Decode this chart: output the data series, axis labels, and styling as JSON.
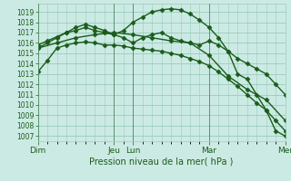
{
  "title": "Pression niveau de la mer( hPa )",
  "bg_color": "#cceae4",
  "grid_color": "#99ccbb",
  "line_color": "#1a5c1a",
  "ylim": [
    1006.5,
    1019.8
  ],
  "yticks": [
    1007,
    1008,
    1009,
    1010,
    1011,
    1012,
    1013,
    1014,
    1015,
    1016,
    1017,
    1018,
    1019
  ],
  "xlim": [
    0,
    156
  ],
  "day_positions": [
    0,
    48,
    60,
    108,
    156
  ],
  "day_labels": [
    "Dim",
    "Jeu",
    "Lun",
    "Mar",
    "Mer"
  ],
  "line1_x": [
    0,
    6,
    12,
    18,
    24,
    30,
    36,
    42,
    48,
    54,
    60,
    66,
    72,
    78,
    84,
    90,
    96,
    102,
    108,
    114,
    120,
    126,
    132,
    138,
    144,
    150,
    156
  ],
  "line1_y": [
    1013.2,
    1014.3,
    1015.5,
    1015.8,
    1016.0,
    1016.1,
    1016.0,
    1015.8,
    1015.8,
    1015.7,
    1015.5,
    1015.4,
    1015.3,
    1015.2,
    1015.0,
    1014.8,
    1014.5,
    1014.2,
    1013.8,
    1013.2,
    1012.5,
    1011.8,
    1011.0,
    1010.2,
    1009.5,
    1008.5,
    1007.5
  ],
  "line2_x": [
    0,
    6,
    12,
    18,
    24,
    30,
    36,
    42,
    48,
    54,
    60,
    66,
    72,
    78,
    84,
    90,
    96,
    102,
    108,
    114,
    120,
    126,
    132,
    138,
    144,
    150,
    156
  ],
  "line2_y": [
    1015.8,
    1016.2,
    1016.6,
    1017.0,
    1017.2,
    1017.5,
    1017.2,
    1017.0,
    1016.8,
    1016.5,
    1016.0,
    1016.5,
    1016.8,
    1017.0,
    1016.5,
    1016.2,
    1016.0,
    1015.8,
    1016.2,
    1015.8,
    1015.2,
    1014.5,
    1014.0,
    1013.5,
    1013.0,
    1012.0,
    1011.0
  ],
  "line3_x": [
    0,
    6,
    12,
    18,
    24,
    30,
    36,
    42,
    48,
    54,
    60,
    66,
    72,
    78,
    84,
    90,
    96,
    102,
    108,
    114,
    120,
    126,
    132,
    138,
    144,
    150,
    156
  ],
  "line3_y": [
    1015.5,
    1016.0,
    1016.5,
    1017.0,
    1017.5,
    1017.8,
    1017.5,
    1017.2,
    1016.8,
    1017.2,
    1018.0,
    1018.5,
    1019.0,
    1019.2,
    1019.3,
    1019.2,
    1018.8,
    1018.2,
    1017.5,
    1016.5,
    1015.2,
    1013.0,
    1012.5,
    1011.0,
    1009.5,
    1007.5,
    1007.0
  ],
  "line4_x": [
    0,
    12,
    24,
    36,
    48,
    60,
    72,
    84,
    96,
    108,
    120,
    132,
    144,
    156
  ],
  "line4_y": [
    1015.5,
    1016.0,
    1016.5,
    1016.8,
    1017.0,
    1016.8,
    1016.5,
    1016.2,
    1016.0,
    1014.8,
    1012.8,
    1011.5,
    1010.5,
    1008.5
  ],
  "marker_size": 3.5,
  "line_width": 1.0,
  "title_fontsize": 7,
  "ytick_fontsize": 5.5,
  "xtick_fontsize": 6.5
}
